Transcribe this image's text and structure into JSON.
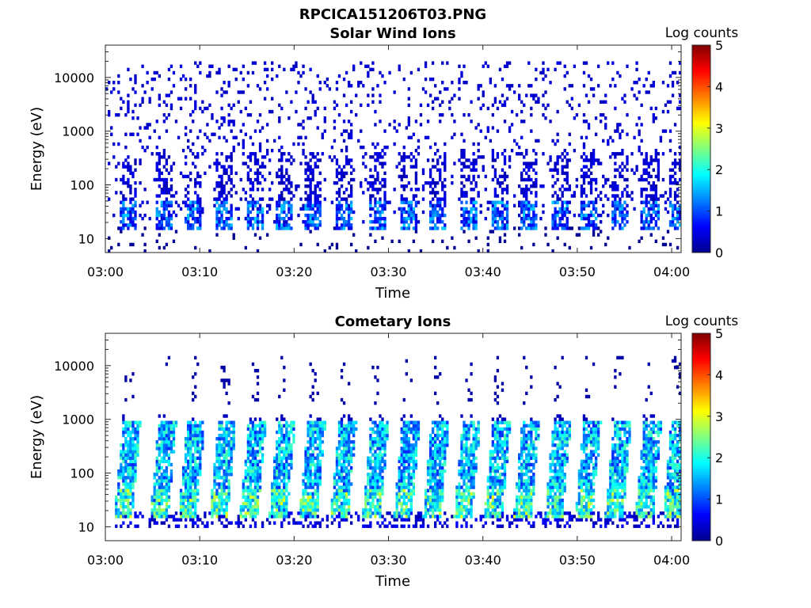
{
  "figure_title": "RPCICA151206T03.PNG",
  "chart_data": [
    {
      "type": "heatmap",
      "title": "Solar Wind Ions",
      "xlabel": "Time",
      "ylabel": "Energy (eV)",
      "x_ticks": [
        "03:00",
        "03:10",
        "03:20",
        "03:30",
        "03:40",
        "03:50",
        "04:00"
      ],
      "xlim": [
        "03:00",
        "04:01"
      ],
      "y_scale": "log",
      "y_ticks": [
        "10",
        "100",
        "1000",
        "10000"
      ],
      "ylim": [
        5.5,
        40000
      ],
      "colorbar": {
        "label": "Log counts",
        "range": [
          0,
          5
        ],
        "ticks": [
          "0",
          "1",
          "2",
          "3",
          "4",
          "5"
        ],
        "colormap": "jet"
      },
      "ion_bursts_min": [
        2.5,
        6.3,
        9.3,
        12.6,
        15.8,
        18.9,
        22.1,
        25.4,
        28.8,
        32.1,
        35.2,
        38.5,
        41.7,
        44.8,
        48.1,
        51.3,
        54.5,
        57.7,
        60.6
      ],
      "burst_peak_log_counts": 1.4,
      "burst_energy_band_eV": [
        15,
        50
      ],
      "background_energy_range_eV": [
        20,
        20000
      ],
      "background_log_counts": 0.3
    },
    {
      "type": "heatmap",
      "title": "Cometary Ions",
      "xlabel": "Time",
      "ylabel": "Energy (eV)",
      "x_ticks": [
        "03:00",
        "03:10",
        "03:20",
        "03:30",
        "03:40",
        "03:50",
        "04:00"
      ],
      "xlim": [
        "03:00",
        "04:01"
      ],
      "y_scale": "log",
      "y_ticks": [
        "10",
        "100",
        "1000",
        "10000"
      ],
      "ylim": [
        5.5,
        40000
      ],
      "colorbar": {
        "label": "Log counts",
        "range": [
          0,
          5
        ],
        "ticks": [
          "0",
          "1",
          "2",
          "3",
          "4",
          "5"
        ],
        "colormap": "jet"
      },
      "ion_bursts_min": [
        2.5,
        6.3,
        9.3,
        12.6,
        15.8,
        18.9,
        22.1,
        25.4,
        28.8,
        32.1,
        35.2,
        38.5,
        41.7,
        44.8,
        48.1,
        51.3,
        54.5,
        57.7,
        60.6
      ],
      "burst_peak_log_counts": 2.7,
      "burst_energy_band_eV": [
        15,
        900
      ],
      "high_energy_sporadic_eV": [
        2000,
        15000
      ]
    }
  ]
}
